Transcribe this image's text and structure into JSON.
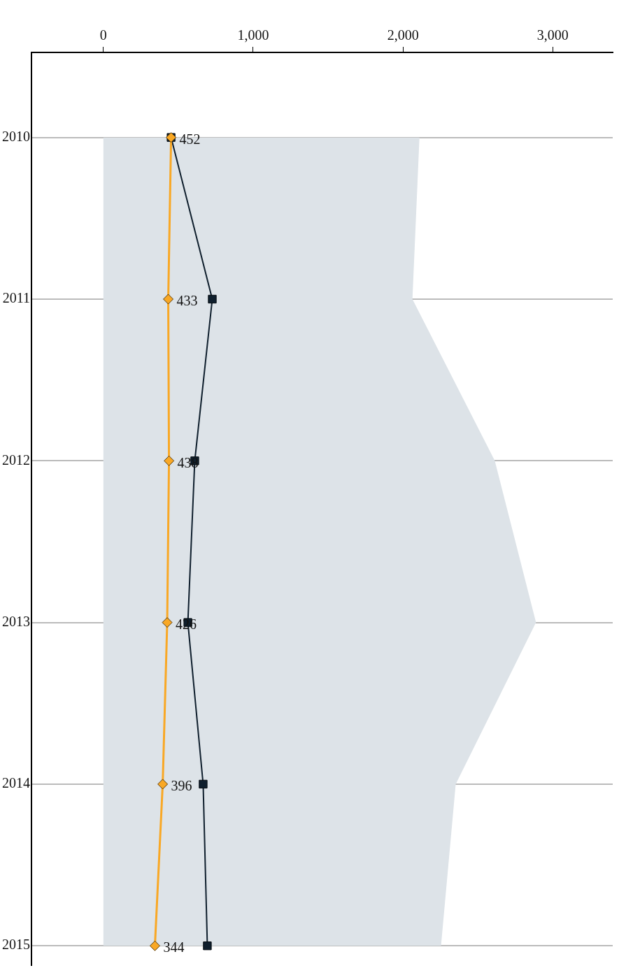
{
  "chart_data": {
    "type": "line",
    "orientation": "horizontal",
    "categories": [
      "2010",
      "2011",
      "2012",
      "2013",
      "2014",
      "2015"
    ],
    "xlim": [
      -480,
      3400
    ],
    "xticks": [
      0,
      {
        "value": 1000,
        "label": "1,000"
      },
      {
        "value": 2000,
        "label": "2,000"
      },
      {
        "value": 3000,
        "label": "3,000"
      }
    ],
    "grid": "y",
    "legend": false,
    "series": [
      {
        "color": "#0f1f2d",
        "marker": "square",
        "values": [
          452,
          727,
          610,
          564,
          666,
          694
        ]
      },
      {
        "color": "#f9a825",
        "marker": "diamond",
        "data_labels": true,
        "values": [
          452,
          433,
          438,
          426,
          396,
          344
        ]
      },
      {
        "type": "area",
        "color": "#dde3e8",
        "values": [
          2110,
          2063,
          2613,
          2888,
          2352,
          2254
        ]
      }
    ]
  }
}
